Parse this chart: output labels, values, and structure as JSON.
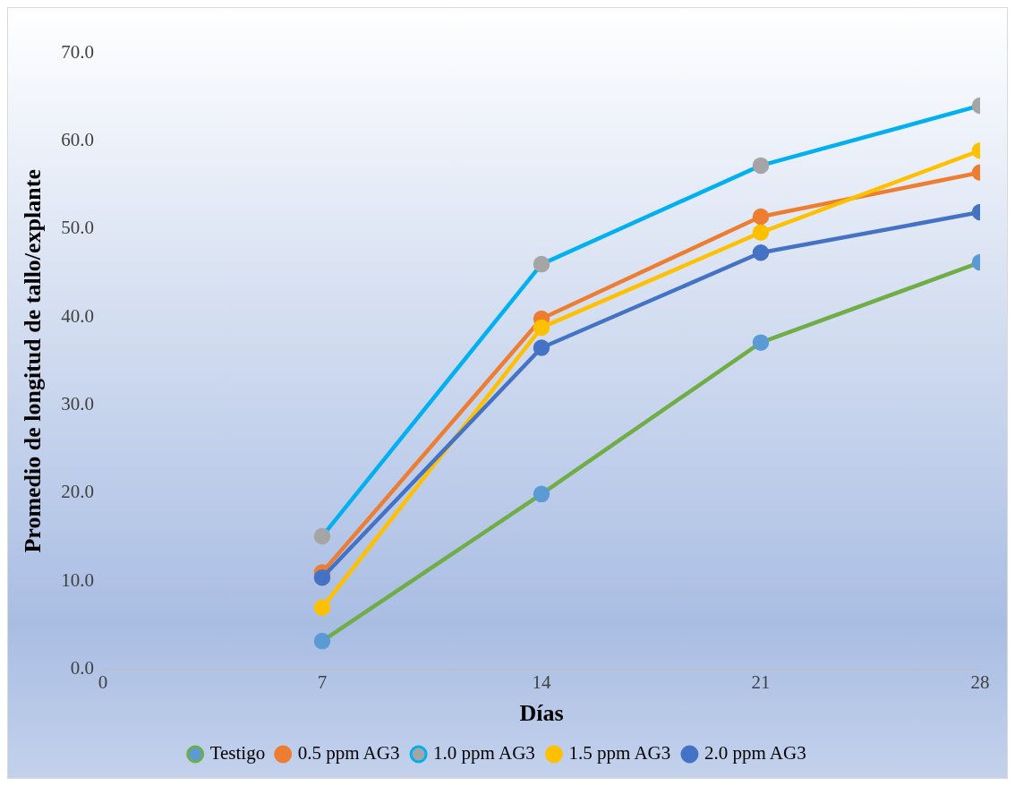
{
  "chart_data": {
    "type": "line",
    "xlabel": "Días",
    "ylabel": "Promedio de longitud de tallo/explante",
    "x": [
      7,
      14,
      21,
      28
    ],
    "xlim": [
      0,
      28
    ],
    "xticks": [
      0,
      7,
      14,
      21,
      28
    ],
    "ylim": [
      0,
      70
    ],
    "yticks": [
      {
        "value": 0,
        "label": "0.0"
      },
      {
        "value": 10,
        "label": "10.0"
      },
      {
        "value": 20,
        "label": "20.0"
      },
      {
        "value": 30,
        "label": "30.0"
      },
      {
        "value": 40,
        "label": "40.0"
      },
      {
        "value": 50,
        "label": "50.0"
      },
      {
        "value": 60,
        "label": "60.0"
      },
      {
        "value": 70,
        "label": "70.0"
      }
    ],
    "grid": false,
    "legend": "bottom",
    "marker": "circle",
    "line_style": "solid",
    "series": [
      {
        "name": "Testigo",
        "color": "#70ad47",
        "colors": [
          "#5b9bd5",
          "#5b9bd5",
          "#5b9bd5",
          "#5b9bd5"
        ],
        "values": [
          3.2,
          19.9,
          37.1,
          46.2
        ]
      },
      {
        "name": "0.5 ppm AG3",
        "color": "#ed7d31",
        "colors": [
          "#ed7d31",
          "#ed7d31",
          "#ed7d31",
          "#ed7d31"
        ],
        "values": [
          11.0,
          39.8,
          51.4,
          56.4
        ]
      },
      {
        "name": "1.0 ppm AG3",
        "color": "#00b0f0",
        "colors": [
          "#a5a5a5",
          "#a5a5a5",
          "#a5a5a5",
          "#a5a5a5"
        ],
        "values": [
          15.1,
          46.0,
          57.2,
          64.0
        ]
      },
      {
        "name": "1.5 ppm AG3",
        "color": "#ffc000",
        "colors": [
          "#ffc000",
          "#ffc000",
          "#ffc000",
          "#ffc000"
        ],
        "values": [
          7.0,
          38.8,
          49.6,
          58.9
        ]
      },
      {
        "name": "2.0 ppm AG3",
        "color": "#4472c4",
        "colors": [
          "#4472c4",
          "#4472c4",
          "#4472c4",
          "#4472c4"
        ],
        "values": [
          10.4,
          36.5,
          47.3,
          51.9
        ]
      }
    ]
  }
}
